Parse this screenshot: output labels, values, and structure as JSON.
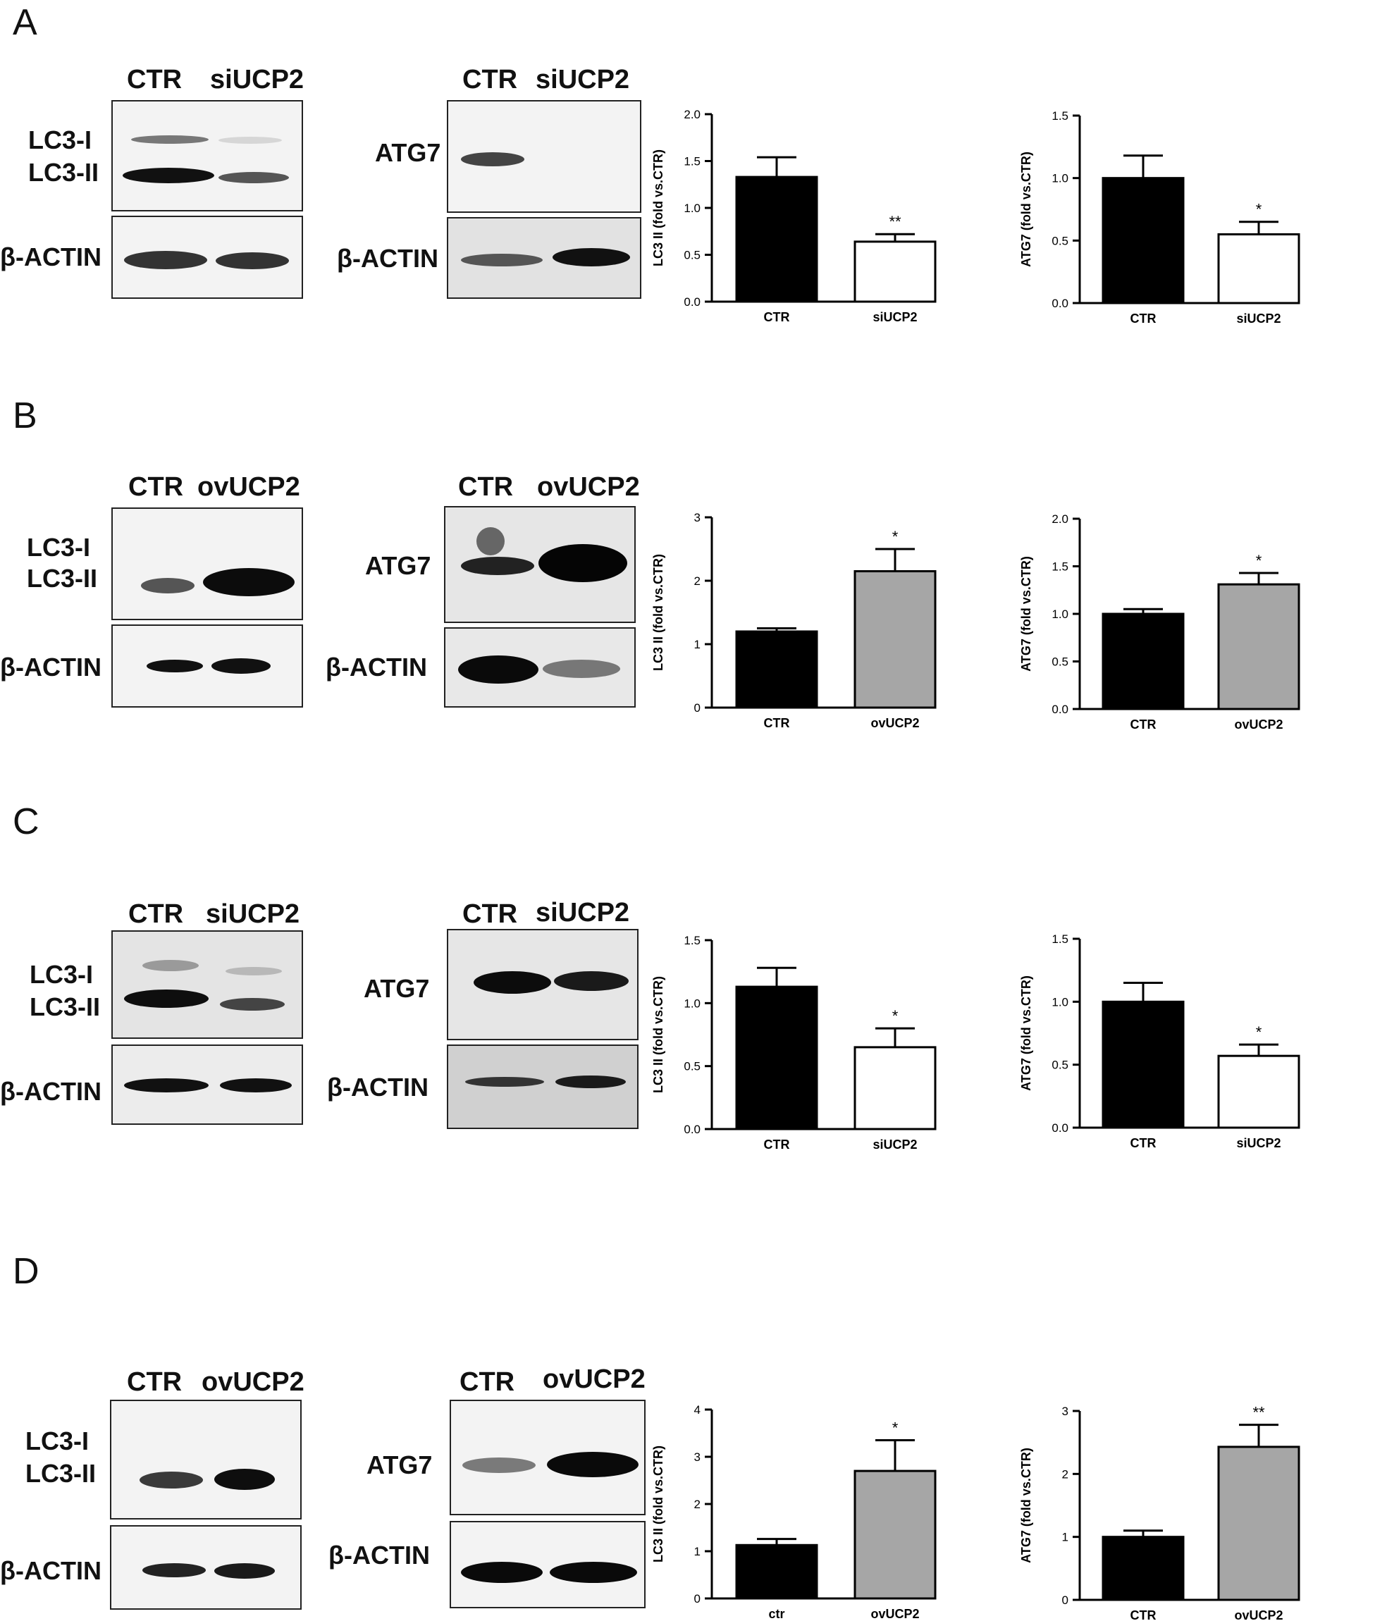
{
  "panels": [
    {
      "letter": "A",
      "blot_lc3": {
        "lanes": [
          "CTR",
          "siUCP2"
        ],
        "rows": [
          "LC3-I",
          "LC3-II",
          "β-ACTIN"
        ]
      },
      "blot_atg7": {
        "lanes": [
          "CTR",
          "siUCP2"
        ],
        "rows": [
          "ATG7",
          "β-ACTIN"
        ]
      },
      "treatment": "si"
    },
    {
      "letter": "B",
      "blot_lc3": {
        "lanes": [
          "CTR",
          "ovUCP2"
        ],
        "rows": [
          "LC3-I",
          "LC3-II",
          "β-ACTIN"
        ]
      },
      "blot_atg7": {
        "lanes": [
          "CTR",
          "ovUCP2"
        ],
        "rows": [
          "ATG7",
          "β-ACTIN"
        ]
      },
      "treatment": "ov"
    },
    {
      "letter": "C",
      "blot_lc3": {
        "lanes": [
          "CTR",
          "siUCP2"
        ],
        "rows": [
          "LC3-I",
          "LC3-II",
          "β-ACTIN"
        ]
      },
      "blot_atg7": {
        "lanes": [
          "CTR",
          "siUCP2"
        ],
        "rows": [
          "ATG7",
          "β-ACTIN"
        ]
      },
      "treatment": "si"
    },
    {
      "letter": "D",
      "blot_lc3": {
        "lanes": [
          "CTR",
          "ovUCP2"
        ],
        "rows": [
          "LC3-I",
          "LC3-II",
          "β-ACTIN"
        ]
      },
      "blot_atg7": {
        "lanes": [
          "CTR",
          "ovUCP2"
        ],
        "rows": [
          "ATG7",
          "β-ACTIN"
        ]
      },
      "treatment": "ov"
    }
  ],
  "colors": {
    "ctr_bar": "#000000",
    "si_bar": "#ffffff",
    "ov_bar": "#a6a6a6",
    "axis": "#000000"
  },
  "chart_data": [
    {
      "panel": "A",
      "type": "bar",
      "categories": [
        "CTR",
        "siUCP2"
      ],
      "values": [
        1.33,
        0.64
      ],
      "errors": [
        0.21,
        0.08
      ],
      "significance": [
        "",
        "**"
      ],
      "ylabel": "LC3 II (fold vs.CTR)",
      "ylim": [
        0,
        2.0
      ],
      "yticks": [
        "0.0",
        "0.5",
        "1.0",
        "1.5",
        "2.0"
      ]
    },
    {
      "panel": "A",
      "type": "bar",
      "categories": [
        "CTR",
        "siUCP2"
      ],
      "values": [
        1.0,
        0.55
      ],
      "errors": [
        0.18,
        0.1
      ],
      "significance": [
        "",
        "*"
      ],
      "ylabel": "ATG7 (fold vs.CTR)",
      "ylim": [
        0,
        1.5
      ],
      "yticks": [
        "0.0",
        "0.5",
        "1.0",
        "1.5"
      ]
    },
    {
      "panel": "B",
      "type": "bar",
      "categories": [
        "CTR",
        "ovUCP2"
      ],
      "values": [
        1.2,
        2.15
      ],
      "errors": [
        0.05,
        0.35
      ],
      "significance": [
        "",
        "*"
      ],
      "ylabel": "LC3 II (fold vs.CTR)",
      "ylim": [
        0,
        3
      ],
      "yticks": [
        "0",
        "1",
        "2",
        "3"
      ]
    },
    {
      "panel": "B",
      "type": "bar",
      "categories": [
        "CTR",
        "ovUCP2"
      ],
      "values": [
        1.0,
        1.31
      ],
      "errors": [
        0.05,
        0.12
      ],
      "significance": [
        "",
        "*"
      ],
      "ylabel": "ATG7 (fold vs.CTR)",
      "ylim": [
        0,
        2.0
      ],
      "yticks": [
        "0.0",
        "0.5",
        "1.0",
        "1.5",
        "2.0"
      ]
    },
    {
      "panel": "C",
      "type": "bar",
      "categories": [
        "CTR",
        "siUCP2"
      ],
      "values": [
        1.13,
        0.65
      ],
      "errors": [
        0.15,
        0.15
      ],
      "significance": [
        "",
        "*"
      ],
      "ylabel": "LC3 II (fold vs.CTR)",
      "ylim": [
        0,
        1.5
      ],
      "yticks": [
        "0.0",
        "0.5",
        "1.0",
        "1.5"
      ]
    },
    {
      "panel": "C",
      "type": "bar",
      "categories": [
        "CTR",
        "siUCP2"
      ],
      "values": [
        1.0,
        0.57
      ],
      "errors": [
        0.15,
        0.09
      ],
      "significance": [
        "",
        "*"
      ],
      "ylabel": "ATG7 (fold vs.CTR)",
      "ylim": [
        0,
        1.5
      ],
      "yticks": [
        "0.0",
        "0.5",
        "1.0",
        "1.5"
      ]
    },
    {
      "panel": "D",
      "type": "bar",
      "categories": [
        "ctr",
        "ovUCP2"
      ],
      "values": [
        1.13,
        2.7
      ],
      "errors": [
        0.13,
        0.65
      ],
      "significance": [
        "",
        "*"
      ],
      "ylabel": "LC3 II (fold vs.CTR)",
      "ylim": [
        0,
        4
      ],
      "yticks": [
        "0",
        "1",
        "2",
        "3",
        "4"
      ]
    },
    {
      "panel": "D",
      "type": "bar",
      "categories": [
        "CTR",
        "ovUCP2"
      ],
      "values": [
        1.0,
        2.43
      ],
      "errors": [
        0.1,
        0.35
      ],
      "significance": [
        "",
        "**"
      ],
      "ylabel": "ATG7 (fold vs.CTR)",
      "ylim": [
        0,
        3
      ],
      "yticks": [
        "0",
        "1",
        "2",
        "3"
      ]
    }
  ]
}
